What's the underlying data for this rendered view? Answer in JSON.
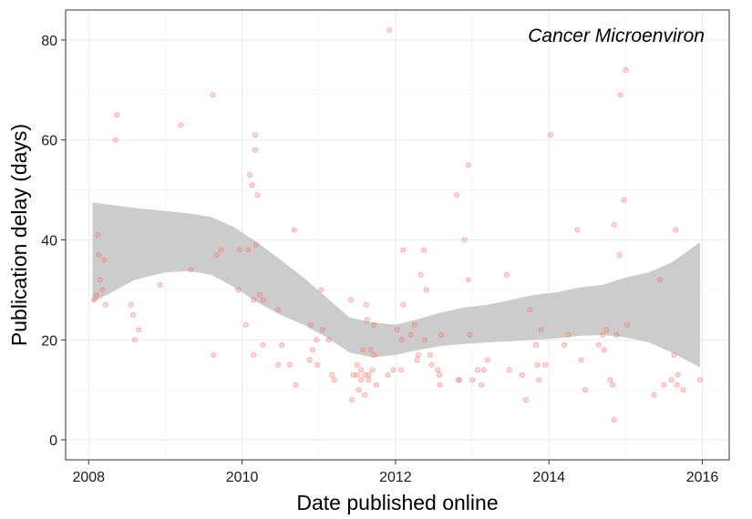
{
  "chart_data": {
    "type": "scatter",
    "title": "",
    "annotation": "Cancer Microenviron",
    "xlabel": "Date published online",
    "ylabel": "Publication delay (days)",
    "xlim": [
      2007.7,
      2016.35
    ],
    "ylim": [
      -4,
      86
    ],
    "x_ticks": [
      2008,
      2010,
      2012,
      2014,
      2016
    ],
    "x_tick_labels": [
      "2008",
      "2010",
      "2012",
      "2014",
      "2016"
    ],
    "y_ticks": [
      0,
      20,
      40,
      60,
      80
    ],
    "y_tick_labels": [
      "0",
      "20",
      "40",
      "60",
      "80"
    ],
    "grid": true,
    "point_color": "#f8766d",
    "band_color": "#cccccc",
    "points": [
      [
        2008.07,
        28
      ],
      [
        2008.1,
        29
      ],
      [
        2008.12,
        41
      ],
      [
        2008.13,
        37
      ],
      [
        2008.15,
        32
      ],
      [
        2008.18,
        30
      ],
      [
        2008.2,
        36
      ],
      [
        2008.22,
        27
      ],
      [
        2008.35,
        60
      ],
      [
        2008.37,
        65
      ],
      [
        2008.55,
        27
      ],
      [
        2008.58,
        25
      ],
      [
        2008.6,
        20
      ],
      [
        2008.65,
        22
      ],
      [
        2008.93,
        31
      ],
      [
        2009.2,
        63
      ],
      [
        2009.33,
        34
      ],
      [
        2009.62,
        69
      ],
      [
        2009.63,
        17
      ],
      [
        2009.67,
        37
      ],
      [
        2009.73,
        38
      ],
      [
        2009.95,
        30
      ],
      [
        2009.97,
        38
      ],
      [
        2010.05,
        23
      ],
      [
        2010.08,
        38
      ],
      [
        2010.1,
        53
      ],
      [
        2010.13,
        51
      ],
      [
        2010.15,
        28
      ],
      [
        2010.15,
        17
      ],
      [
        2010.17,
        61
      ],
      [
        2010.17,
        58
      ],
      [
        2010.18,
        39
      ],
      [
        2010.2,
        49
      ],
      [
        2010.23,
        29
      ],
      [
        2010.27,
        19
      ],
      [
        2010.28,
        28
      ],
      [
        2010.47,
        26
      ],
      [
        2010.47,
        15
      ],
      [
        2010.52,
        19
      ],
      [
        2010.62,
        15
      ],
      [
        2010.68,
        42
      ],
      [
        2010.7,
        11
      ],
      [
        2010.88,
        16
      ],
      [
        2010.9,
        23
      ],
      [
        2010.92,
        18
      ],
      [
        2010.97,
        20
      ],
      [
        2010.98,
        15
      ],
      [
        2011.03,
        30
      ],
      [
        2011.05,
        22
      ],
      [
        2011.13,
        20
      ],
      [
        2011.17,
        13
      ],
      [
        2011.2,
        12
      ],
      [
        2011.42,
        28
      ],
      [
        2011.43,
        8
      ],
      [
        2011.45,
        13
      ],
      [
        2011.5,
        13
      ],
      [
        2011.5,
        15
      ],
      [
        2011.52,
        10
      ],
      [
        2011.55,
        14
      ],
      [
        2011.55,
        12
      ],
      [
        2011.58,
        18
      ],
      [
        2011.6,
        9
      ],
      [
        2011.6,
        13
      ],
      [
        2011.62,
        27
      ],
      [
        2011.63,
        24
      ],
      [
        2011.65,
        12
      ],
      [
        2011.65,
        13
      ],
      [
        2011.68,
        18
      ],
      [
        2011.7,
        14
      ],
      [
        2011.72,
        17
      ],
      [
        2011.72,
        23
      ],
      [
        2011.75,
        11
      ],
      [
        2011.9,
        13
      ],
      [
        2011.92,
        82
      ],
      [
        2011.97,
        14
      ],
      [
        2012.02,
        22
      ],
      [
        2012.07,
        14
      ],
      [
        2012.08,
        20
      ],
      [
        2012.1,
        38
      ],
      [
        2012.1,
        27
      ],
      [
        2012.2,
        21
      ],
      [
        2012.25,
        23
      ],
      [
        2012.28,
        16
      ],
      [
        2012.3,
        17
      ],
      [
        2012.33,
        33
      ],
      [
        2012.37,
        38
      ],
      [
        2012.38,
        20
      ],
      [
        2012.4,
        30
      ],
      [
        2012.45,
        17
      ],
      [
        2012.47,
        15
      ],
      [
        2012.55,
        14
      ],
      [
        2012.57,
        13
      ],
      [
        2012.58,
        11
      ],
      [
        2012.6,
        21
      ],
      [
        2012.8,
        49
      ],
      [
        2012.82,
        12
      ],
      [
        2012.83,
        12
      ],
      [
        2012.9,
        40
      ],
      [
        2012.95,
        55
      ],
      [
        2012.95,
        32
      ],
      [
        2012.97,
        21
      ],
      [
        2013.0,
        12
      ],
      [
        2013.07,
        14
      ],
      [
        2013.12,
        11
      ],
      [
        2013.15,
        14
      ],
      [
        2013.2,
        16
      ],
      [
        2013.45,
        33
      ],
      [
        2013.48,
        14
      ],
      [
        2013.65,
        13
      ],
      [
        2013.7,
        8
      ],
      [
        2013.75,
        26
      ],
      [
        2013.83,
        19
      ],
      [
        2013.85,
        15
      ],
      [
        2013.87,
        12
      ],
      [
        2013.9,
        22
      ],
      [
        2013.95,
        15
      ],
      [
        2014.02,
        61
      ],
      [
        2014.2,
        19
      ],
      [
        2014.25,
        21
      ],
      [
        2014.37,
        42
      ],
      [
        2014.42,
        16
      ],
      [
        2014.47,
        10
      ],
      [
        2014.65,
        19
      ],
      [
        2014.7,
        21
      ],
      [
        2014.72,
        18
      ],
      [
        2014.75,
        22
      ],
      [
        2014.8,
        12
      ],
      [
        2014.83,
        11
      ],
      [
        2014.85,
        4
      ],
      [
        2014.85,
        43
      ],
      [
        2014.88,
        21
      ],
      [
        2014.92,
        37
      ],
      [
        2014.93,
        69
      ],
      [
        2014.98,
        48
      ],
      [
        2015.0,
        74
      ],
      [
        2015.02,
        23
      ],
      [
        2015.37,
        9
      ],
      [
        2015.45,
        32
      ],
      [
        2015.5,
        11
      ],
      [
        2015.6,
        12
      ],
      [
        2015.63,
        17
      ],
      [
        2015.65,
        42
      ],
      [
        2015.67,
        11
      ],
      [
        2015.68,
        13
      ],
      [
        2015.75,
        10
      ],
      [
        2015.97,
        12
      ]
    ],
    "smooth_band": [
      [
        2008.05,
        27.5,
        47.5
      ],
      [
        2008.3,
        29.5,
        47.0
      ],
      [
        2008.6,
        32.0,
        46.4
      ],
      [
        2009.0,
        33.5,
        45.8
      ],
      [
        2009.3,
        33.8,
        45.3
      ],
      [
        2009.6,
        33.0,
        44.6
      ],
      [
        2009.9,
        30.5,
        42.5
      ],
      [
        2010.2,
        27.5,
        39.5
      ],
      [
        2010.5,
        25.0,
        36.0
      ],
      [
        2010.8,
        23.0,
        32.5
      ],
      [
        2011.1,
        20.5,
        28.5
      ],
      [
        2011.4,
        17.5,
        24.5
      ],
      [
        2011.7,
        16.5,
        23.5
      ],
      [
        2012.0,
        17.0,
        23.0
      ],
      [
        2012.3,
        18.0,
        24.2
      ],
      [
        2012.6,
        18.8,
        25.5
      ],
      [
        2012.9,
        19.2,
        26.5
      ],
      [
        2013.2,
        19.5,
        27.0
      ],
      [
        2013.5,
        19.7,
        28.0
      ],
      [
        2013.8,
        20.0,
        29.0
      ],
      [
        2014.1,
        20.3,
        29.5
      ],
      [
        2014.4,
        20.8,
        30.5
      ],
      [
        2014.7,
        21.0,
        31.0
      ],
      [
        2015.0,
        20.5,
        32.5
      ],
      [
        2015.3,
        19.5,
        33.5
      ],
      [
        2015.6,
        17.5,
        35.5
      ],
      [
        2015.97,
        14.5,
        39.5
      ]
    ]
  }
}
